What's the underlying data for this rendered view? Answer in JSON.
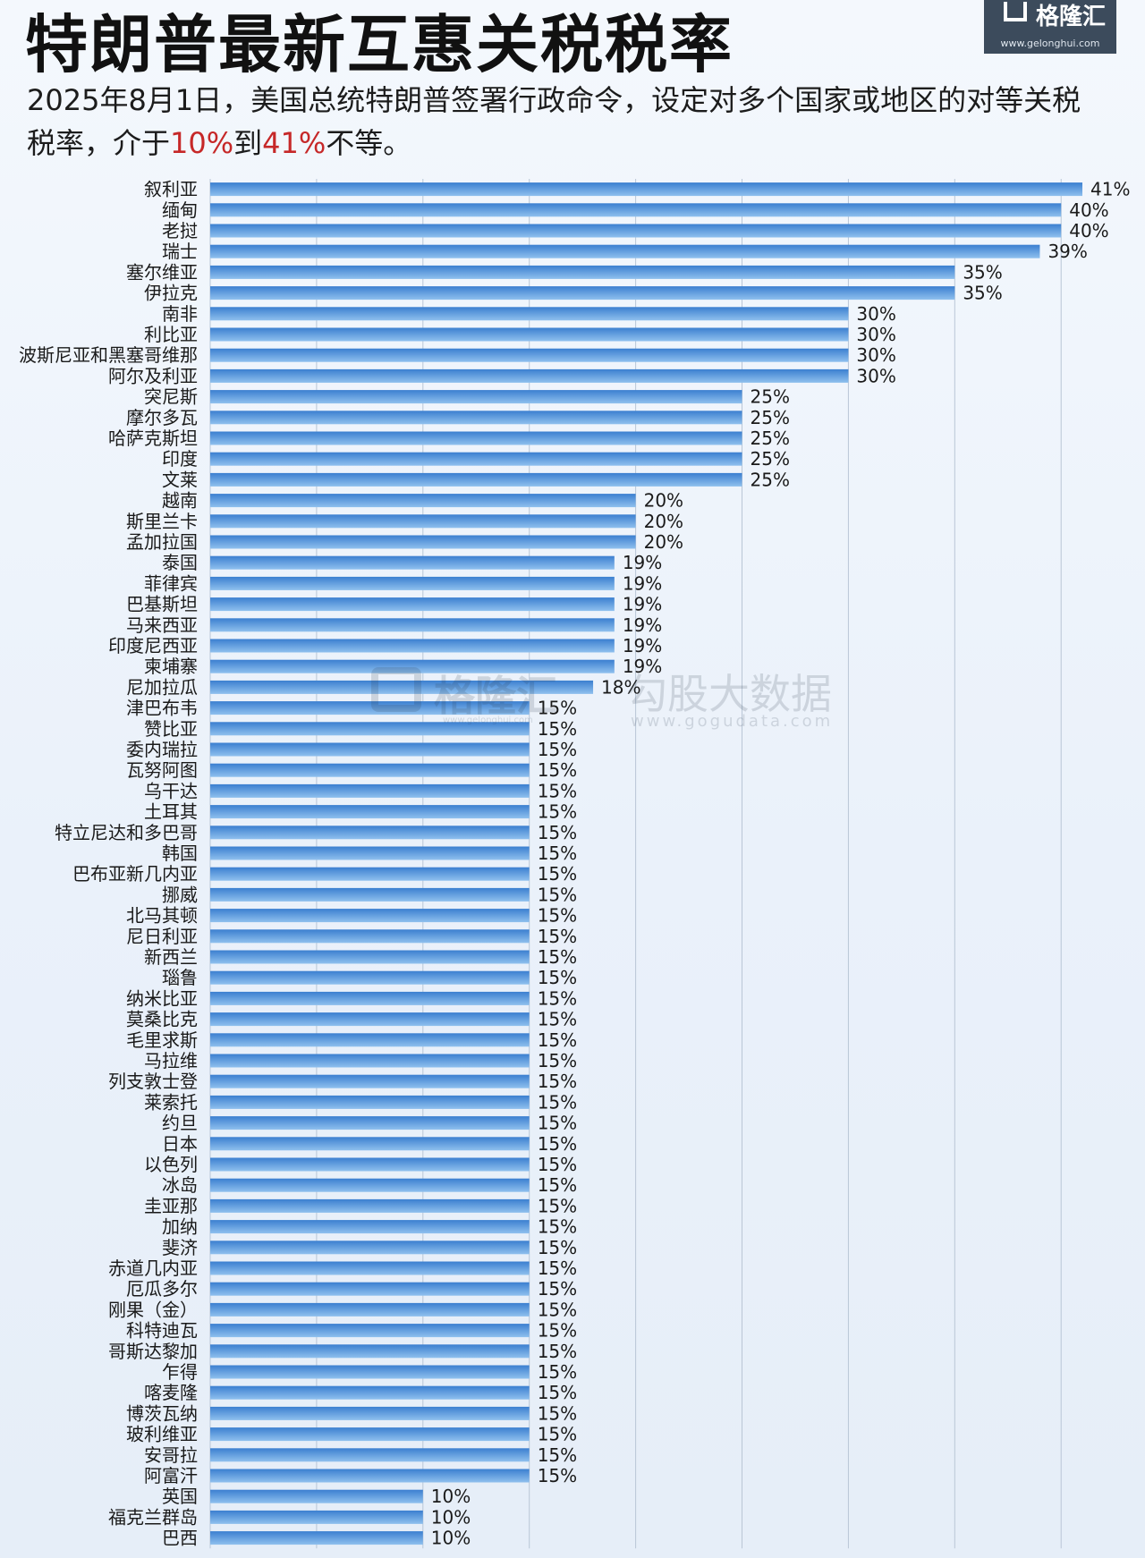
{
  "header": {
    "title": "特朗普最新互惠关税税率",
    "subtitle_main": "2025年8月1日，美国总统特朗普签署行政命令，设定对多个国家或地区的对等关税税率，介于",
    "subtitle_low": "10%",
    "subtitle_mid": "到",
    "subtitle_high": "41%",
    "subtitle_end": "不等。"
  },
  "logo": {
    "name": "格隆汇",
    "url": "www.gelonghui.com"
  },
  "watermark": {
    "brand": "格隆汇",
    "small": "www.gelonghui.com",
    "brand2": "勾股大数据",
    "url2": "www.gogudata.com"
  },
  "colors": {
    "bar_dark": "#3b7fd0",
    "bar_light": "#8fc0ee",
    "highlight": "#c62828",
    "grid": "#b9c6d6"
  },
  "chart_data": {
    "type": "bar",
    "orientation": "horizontal",
    "xlim": [
      0,
      41
    ],
    "grid": true,
    "value_suffix": "%",
    "categories": [
      "叙利亚",
      "缅甸",
      "老挝",
      "瑞士",
      "塞尔维亚",
      "伊拉克",
      "南非",
      "利比亚",
      "波斯尼亚和黑塞哥维那",
      "阿尔及利亚",
      "突尼斯",
      "摩尔多瓦",
      "哈萨克斯坦",
      "印度",
      "文莱",
      "越南",
      "斯里兰卡",
      "孟加拉国",
      "泰国",
      "菲律宾",
      "巴基斯坦",
      "马来西亚",
      "印度尼西亚",
      "柬埔寨",
      "尼加拉瓜",
      "津巴布韦",
      "赞比亚",
      "委内瑞拉",
      "瓦努阿图",
      "乌干达",
      "土耳其",
      "特立尼达和多巴哥",
      "韩国",
      "巴布亚新几内亚",
      "挪威",
      "北马其顿",
      "尼日利亚",
      "新西兰",
      "瑙鲁",
      "纳米比亚",
      "莫桑比克",
      "毛里求斯",
      "马拉维",
      "列支敦士登",
      "莱索托",
      "约旦",
      "日本",
      "以色列",
      "冰岛",
      "圭亚那",
      "加纳",
      "斐济",
      "赤道几内亚",
      "厄瓜多尔",
      "刚果（金）",
      "科特迪瓦",
      "哥斯达黎加",
      "乍得",
      "喀麦隆",
      "博茨瓦纳",
      "玻利维亚",
      "安哥拉",
      "阿富汗",
      "英国",
      "福克兰群岛",
      "巴西"
    ],
    "values": [
      41,
      40,
      40,
      39,
      35,
      35,
      30,
      30,
      30,
      30,
      25,
      25,
      25,
      25,
      25,
      20,
      20,
      20,
      19,
      19,
      19,
      19,
      19,
      19,
      18,
      15,
      15,
      15,
      15,
      15,
      15,
      15,
      15,
      15,
      15,
      15,
      15,
      15,
      15,
      15,
      15,
      15,
      15,
      15,
      15,
      15,
      15,
      15,
      15,
      15,
      15,
      15,
      15,
      15,
      15,
      15,
      15,
      15,
      15,
      15,
      15,
      15,
      15,
      10,
      10,
      10
    ]
  }
}
